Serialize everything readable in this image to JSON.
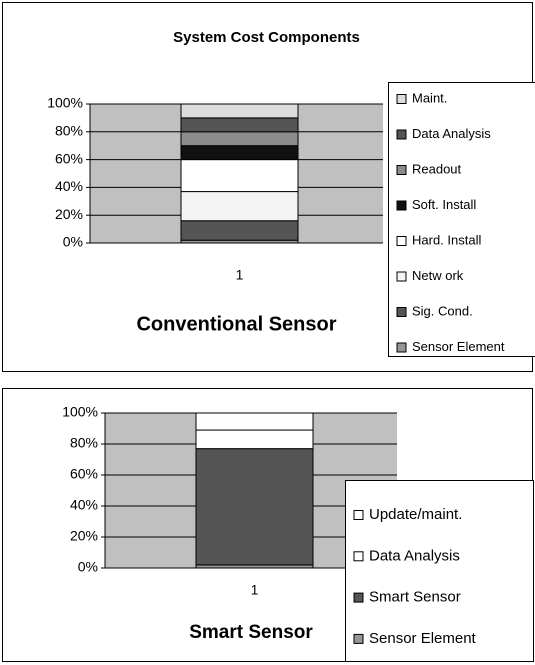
{
  "chart_data": [
    {
      "type": "bar",
      "title": "System Cost Components",
      "xlabel": "Conventional Sensor",
      "categories": [
        "1"
      ],
      "ylim": [
        0,
        100
      ],
      "yticks": [
        {
          "value": 0,
          "label": "0%"
        },
        {
          "value": 20,
          "label": "20%"
        },
        {
          "value": 40,
          "label": "40%"
        },
        {
          "value": 60,
          "label": "60%"
        },
        {
          "value": 80,
          "label": "80%"
        },
        {
          "value": 100,
          "label": "100%"
        }
      ],
      "grid": true,
      "series": [
        {
          "name": "Sensor Element",
          "color": "#969696",
          "values": [
            2
          ]
        },
        {
          "name": "Sig. Cond.",
          "color": "#555555",
          "values": [
            14
          ]
        },
        {
          "name": "Netw ork",
          "color": "#f4f4f4",
          "values": [
            21
          ]
        },
        {
          "name": "Hard. Install",
          "color": "#ffffff",
          "values": [
            23
          ]
        },
        {
          "name": "Soft. Install",
          "color": "#111111",
          "values": [
            10
          ]
        },
        {
          "name": "Readout",
          "color": "#8c8c8c",
          "values": [
            10
          ]
        },
        {
          "name": "Data Analysis",
          "color": "#555555",
          "values": [
            10
          ]
        },
        {
          "name": "Maint.",
          "color": "#dddddd",
          "values": [
            10
          ]
        }
      ]
    },
    {
      "type": "bar",
      "xlabel": "Smart Sensor",
      "categories": [
        "1"
      ],
      "ylim": [
        0,
        100
      ],
      "yticks": [
        {
          "value": 0,
          "label": "0%"
        },
        {
          "value": 20,
          "label": "20%"
        },
        {
          "value": 40,
          "label": "40%"
        },
        {
          "value": 60,
          "label": "60%"
        },
        {
          "value": 80,
          "label": "80%"
        },
        {
          "value": 100,
          "label": "100%"
        }
      ],
      "grid": true,
      "series": [
        {
          "name": "Sensor Element",
          "color": "#969696",
          "values": [
            2
          ]
        },
        {
          "name": "Smart Sensor",
          "color": "#555555",
          "values": [
            75
          ]
        },
        {
          "name": "Data Analysis",
          "color": "#ffffff",
          "values": [
            12
          ]
        },
        {
          "name": "Update/maint.",
          "color": "#ffffff",
          "values": [
            11
          ]
        }
      ]
    }
  ]
}
